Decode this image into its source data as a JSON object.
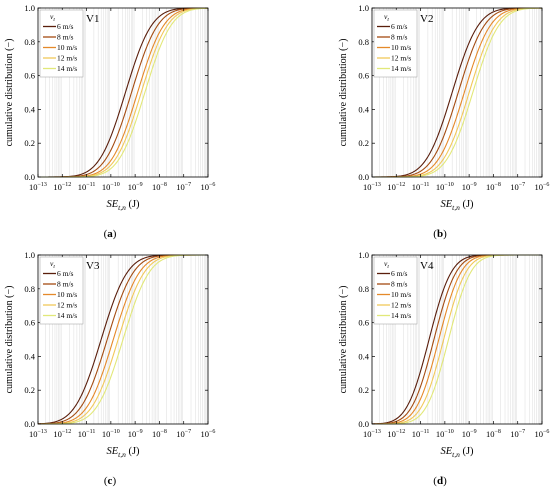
{
  "chart_data": [
    {
      "type": "line",
      "panel_tag": "V1",
      "caption": "(a)",
      "xlabel_main": "SE",
      "xlabel_sub": "t,n",
      "xlabel_unit": " (J)",
      "ylabel": "cumulative distribution (−)",
      "xscale": "log",
      "xlim": [
        1e-13,
        1e-06
      ],
      "ylim": [
        0,
        1
      ],
      "x_tick_exponents": [
        -13,
        -12,
        -11,
        -10,
        -9,
        -8,
        -7,
        -6
      ],
      "y_ticks": [
        "0.0",
        "0.2",
        "0.4",
        "0.6",
        "0.8",
        "1.0"
      ],
      "grid": "minor vertical",
      "legend_title_main": "v",
      "legend_title_sub": "t",
      "legend_position": "top-left",
      "series": [
        {
          "name": "6 m/s",
          "color": "#5a1e0c",
          "median_exp": -9.4,
          "sigma_exp": 0.85
        },
        {
          "name": "8 m/s",
          "color": "#a44c12",
          "median_exp": -9.15,
          "sigma_exp": 0.85
        },
        {
          "name": "10 m/s",
          "color": "#e5892a",
          "median_exp": -8.9,
          "sigma_exp": 0.85
        },
        {
          "name": "12 m/s",
          "color": "#f2c85a",
          "median_exp": -8.75,
          "sigma_exp": 0.85
        },
        {
          "name": "14 m/s",
          "color": "#e2e879",
          "median_exp": -8.6,
          "sigma_exp": 0.85
        }
      ]
    },
    {
      "type": "line",
      "panel_tag": "V2",
      "caption": "(b)",
      "xlabel_main": "SE",
      "xlabel_sub": "t,n",
      "xlabel_unit": " (J)",
      "ylabel": "cumulative distribution (−)",
      "xscale": "log",
      "xlim": [
        1e-13,
        1e-06
      ],
      "ylim": [
        0,
        1
      ],
      "x_tick_exponents": [
        -13,
        -12,
        -11,
        -10,
        -9,
        -8,
        -7,
        -6
      ],
      "y_ticks": [
        "0.0",
        "0.2",
        "0.4",
        "0.6",
        "0.8",
        "1.0"
      ],
      "grid": "minor vertical",
      "legend_title_main": "v",
      "legend_title_sub": "t",
      "legend_position": "top-left",
      "series": [
        {
          "name": "6 m/s",
          "color": "#5a1e0c",
          "median_exp": -9.7,
          "sigma_exp": 0.85
        },
        {
          "name": "8 m/s",
          "color": "#a44c12",
          "median_exp": -9.45,
          "sigma_exp": 0.85
        },
        {
          "name": "10 m/s",
          "color": "#e5892a",
          "median_exp": -9.2,
          "sigma_exp": 0.85
        },
        {
          "name": "12 m/s",
          "color": "#f2c85a",
          "median_exp": -9.0,
          "sigma_exp": 0.85
        },
        {
          "name": "14 m/s",
          "color": "#e2e879",
          "median_exp": -8.85,
          "sigma_exp": 0.85
        }
      ]
    },
    {
      "type": "line",
      "panel_tag": "V3",
      "caption": "(c)",
      "xlabel_main": "SE",
      "xlabel_sub": "t,n",
      "xlabel_unit": " (J)",
      "ylabel": "cumulative distribution (−)",
      "xscale": "log",
      "xlim": [
        1e-13,
        1e-06
      ],
      "ylim": [
        0,
        1
      ],
      "x_tick_exponents": [
        -13,
        -12,
        -11,
        -10,
        -9,
        -8,
        -7,
        -6
      ],
      "y_ticks": [
        "0.0",
        "0.2",
        "0.4",
        "0.6",
        "0.8",
        "1.0"
      ],
      "grid": "minor vertical",
      "legend_title_main": "v",
      "legend_title_sub": "t",
      "legend_position": "top-left",
      "series": [
        {
          "name": "6 m/s",
          "color": "#5a1e0c",
          "median_exp": -10.4,
          "sigma_exp": 0.85
        },
        {
          "name": "8 m/s",
          "color": "#a44c12",
          "median_exp": -10.15,
          "sigma_exp": 0.85
        },
        {
          "name": "10 m/s",
          "color": "#e5892a",
          "median_exp": -9.9,
          "sigma_exp": 0.85
        },
        {
          "name": "12 m/s",
          "color": "#f2c85a",
          "median_exp": -9.7,
          "sigma_exp": 0.85
        },
        {
          "name": "14 m/s",
          "color": "#e2e879",
          "median_exp": -9.5,
          "sigma_exp": 0.85
        }
      ]
    },
    {
      "type": "line",
      "panel_tag": "V4",
      "caption": "(d)",
      "xlabel_main": "SE",
      "xlabel_sub": "t,n",
      "xlabel_unit": " (J)",
      "ylabel": "cumulative distribution (−)",
      "xscale": "log",
      "xlim": [
        1e-13,
        1e-06
      ],
      "ylim": [
        0,
        1
      ],
      "x_tick_exponents": [
        -13,
        -12,
        -11,
        -10,
        -9,
        -8,
        -7,
        -6
      ],
      "y_ticks": [
        "0.0",
        "0.2",
        "0.4",
        "0.6",
        "0.8",
        "1.0"
      ],
      "grid": "minor vertical",
      "legend_title_main": "v",
      "legend_title_sub": "t",
      "legend_position": "top-left",
      "series": [
        {
          "name": "6 m/s",
          "color": "#5a1e0c",
          "median_exp": -10.65,
          "sigma_exp": 0.72
        },
        {
          "name": "8 m/s",
          "color": "#a44c12",
          "median_exp": -10.45,
          "sigma_exp": 0.72
        },
        {
          "name": "10 m/s",
          "color": "#e5892a",
          "median_exp": -10.25,
          "sigma_exp": 0.72
        },
        {
          "name": "12 m/s",
          "color": "#f2c85a",
          "median_exp": -10.05,
          "sigma_exp": 0.72
        },
        {
          "name": "14 m/s",
          "color": "#e2e879",
          "median_exp": -9.85,
          "sigma_exp": 0.72
        }
      ]
    }
  ]
}
